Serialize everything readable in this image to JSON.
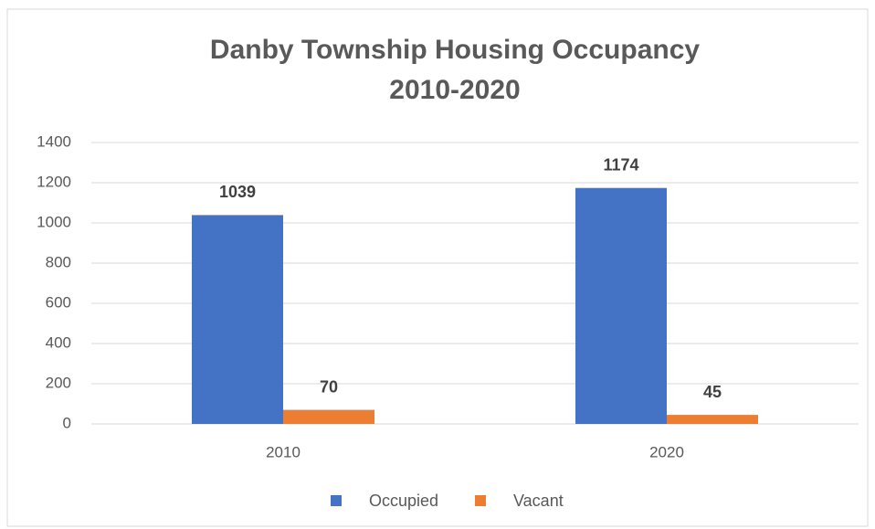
{
  "chart_data": {
    "type": "bar",
    "title": [
      "Danby Township Housing Occupancy",
      "2010-2020"
    ],
    "categories": [
      "2010",
      "2020"
    ],
    "series": [
      {
        "name": "Occupied",
        "color": "#4472c4",
        "values": [
          1039,
          1174
        ]
      },
      {
        "name": "Vacant",
        "color": "#ed7d31",
        "values": [
          70,
          45
        ]
      }
    ],
    "ylim": [
      0,
      1400
    ],
    "yticks": [
      0,
      200,
      400,
      600,
      800,
      1000,
      1200,
      1400
    ],
    "grid": true,
    "legend": "bottom"
  }
}
